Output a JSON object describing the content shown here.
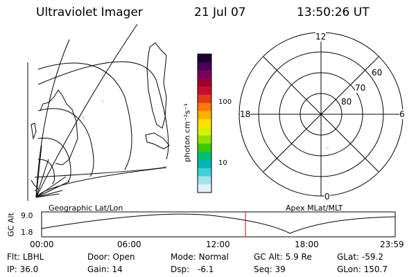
{
  "header": {
    "instrument": "Ultraviolet Imager",
    "date": "21 Jul 07",
    "time": "13:50:26 UT"
  },
  "colorbar": {
    "label": "photon cm⁻²s⁻¹",
    "ticks": [
      "100",
      "10"
    ],
    "colors": [
      "#1a0033",
      "#4b0050",
      "#7a0060",
      "#a00030",
      "#c8102e",
      "#e03a1a",
      "#ff7a00",
      "#ffb000",
      "#ffe000",
      "#d8f000",
      "#90e000",
      "#40c800",
      "#00c070",
      "#00b8b0",
      "#40d0d8",
      "#a0e4ec",
      "#e0f4f8"
    ]
  },
  "polar": {
    "clock_labels": {
      "top": "12",
      "left": "18",
      "right": "6",
      "bottom": "0"
    },
    "lat_labels": [
      "60",
      "70",
      "80"
    ]
  },
  "timeline": {
    "left_title": "Geographic Lat/Lon",
    "right_title": "Apex MLat/MLT",
    "y_axis_label": "GC Alt",
    "y_top": "9.0",
    "y_bottom": "1.8",
    "x_ticks": [
      "00:00",
      "06:00",
      "12:00",
      "18:00",
      "23:59"
    ],
    "marker_time_fraction": 0.5767
  },
  "status": {
    "filter_label": "Flt:",
    "filter_value": "LBHL",
    "ip_label": "IP:",
    "ip_value": "36.0",
    "door_label": "Door:",
    "door_value": "Open",
    "gain_label": "Gain:",
    "gain_value": "14",
    "mode_label": "Mode:",
    "mode_value": "Normal",
    "dsp_label": "Dsp:",
    "dsp_value": "-6.1",
    "gcalt_label": "GC Alt:",
    "gcalt_value": "5.9 Re",
    "seq_label": "Seq:",
    "seq_value": "39",
    "glat_label": "GLat:",
    "glat_value": "-59.2",
    "glon_label": "GLon:",
    "glon_value": "150.7"
  }
}
